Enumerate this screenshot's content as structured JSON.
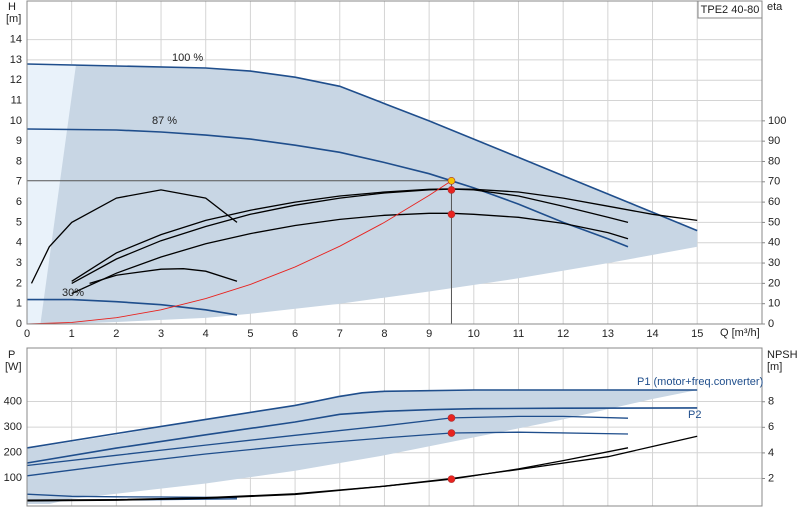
{
  "chart_data": [
    {
      "type": "line",
      "title": "TPE2 40-80",
      "y_label": [
        "H",
        "[m]"
      ],
      "y2_label": "eta",
      "x_label": "Q [m³/h]",
      "xlim": [
        0,
        16.45
      ],
      "ylim": [
        0,
        15.9
      ],
      "y2lim": [
        0,
        159
      ],
      "xticks": [
        0,
        1,
        2,
        3,
        4,
        5,
        6,
        7,
        8,
        9,
        10,
        11,
        12,
        13,
        14,
        15
      ],
      "yticks": [
        0,
        1,
        2,
        3,
        4,
        5,
        6,
        7,
        8,
        9,
        10,
        11,
        12,
        13,
        14
      ],
      "y2ticks": [
        0,
        10,
        20,
        30,
        40,
        50,
        60,
        70,
        80,
        90,
        100
      ],
      "grid": true,
      "series": [
        {
          "color": "#c8d6e4",
          "area": true,
          "x": [
            0,
            2,
            4,
            5,
            6,
            7,
            8,
            9,
            10,
            11,
            12,
            13,
            14,
            15,
            15,
            13,
            11,
            9,
            7,
            5,
            4,
            2,
            0.8,
            0.3
          ],
          "values": [
            12.8,
            12.7,
            12.6,
            12.45,
            12.15,
            11.7,
            10.85,
            10.0,
            9.1,
            8.2,
            7.3,
            6.4,
            5.5,
            4.6,
            3.8,
            3.0,
            2.25,
            1.6,
            1.0,
            0.5,
            0.3,
            0.1,
            0,
            0
          ]
        },
        {
          "color": "#e9f2fa",
          "area": true,
          "x": [
            0,
            1.1,
            0.3,
            0
          ],
          "values": [
            12.8,
            12.8,
            0,
            0
          ]
        },
        {
          "name": "100 %",
          "color": "#1f4e8c",
          "x": [
            0,
            2,
            4,
            5,
            6,
            7,
            8,
            9,
            10,
            11,
            12,
            13,
            14,
            15
          ],
          "values": [
            12.8,
            12.7,
            12.6,
            12.45,
            12.15,
            11.7,
            10.85,
            10.0,
            9.1,
            8.2,
            7.3,
            6.4,
            5.5,
            4.6
          ]
        },
        {
          "name": "87 %",
          "color": "#1f4e8c",
          "x": [
            0,
            2,
            3,
            4,
            5,
            6,
            7,
            8,
            9,
            9.5,
            10,
            11,
            12,
            13,
            13.45
          ],
          "values": [
            9.6,
            9.55,
            9.45,
            9.3,
            9.1,
            8.8,
            8.45,
            7.95,
            7.4,
            7.05,
            6.7,
            5.9,
            5.0,
            4.2,
            3.8
          ]
        },
        {
          "name": "30%",
          "color": "#1f4e8c",
          "x": [
            0,
            1,
            2,
            3,
            4,
            4.7
          ],
          "values": [
            1.2,
            1.2,
            1.1,
            0.95,
            0.7,
            0.45
          ]
        },
        {
          "color": "#000000",
          "axis": "y2",
          "x": [
            1,
            2,
            3,
            4,
            5,
            6,
            7,
            8,
            9,
            9.5,
            10,
            11,
            12,
            13,
            14,
            15
          ],
          "values": [
            21,
            35,
            44,
            51,
            56,
            60,
            63,
            65,
            66.3,
            66.5,
            66.3,
            65,
            62,
            58,
            54,
            51
          ]
        },
        {
          "color": "#000000",
          "axis": "y2",
          "x": [
            1,
            2,
            3,
            4,
            5,
            6,
            7,
            8,
            9,
            9.5,
            10,
            11,
            12,
            13,
            13.45
          ],
          "values": [
            20,
            32,
            41,
            48,
            54,
            58.5,
            62,
            64.5,
            66,
            66.4,
            66,
            63,
            58,
            52.5,
            50
          ]
        },
        {
          "color": "#000000",
          "axis": "y2",
          "x": [
            1,
            2,
            3,
            4,
            5,
            6,
            7,
            8,
            9,
            9.5,
            10,
            11,
            12,
            13,
            13.45
          ],
          "values": [
            15,
            25,
            33,
            39.5,
            44.5,
            48.5,
            51.5,
            53.5,
            54.5,
            54.5,
            54,
            52.5,
            49.5,
            45,
            42
          ]
        },
        {
          "color": "#000000",
          "axis": "y2",
          "x": [
            0.1,
            0.5,
            1,
            2,
            3,
            4,
            4.7
          ],
          "values": [
            20,
            38,
            50,
            62,
            66,
            62,
            50
          ]
        },
        {
          "color": "#000000",
          "axis": "y2",
          "x": [
            1.4,
            2,
            3,
            3.5,
            4,
            4.7
          ],
          "values": [
            20,
            24,
            27,
            27.2,
            26,
            21
          ]
        },
        {
          "color": "#e8231f",
          "x": [
            0,
            1,
            2,
            3,
            4,
            5,
            6,
            7,
            8,
            9,
            9.5
          ],
          "values": [
            0,
            0.08,
            0.31,
            0.7,
            1.25,
            1.95,
            2.81,
            3.83,
            5.0,
            6.33,
            7.05
          ]
        },
        {
          "color": "#f5c400",
          "marker": true,
          "crosshair": true,
          "x": [
            9.5
          ],
          "values": [
            7.05
          ]
        },
        {
          "color": "#e8231f",
          "marker": true,
          "axis": "y2",
          "x": [
            9.5,
            9.5
          ],
          "values": [
            66,
            54
          ]
        }
      ]
    },
    {
      "type": "line",
      "y_label": [
        "P",
        "[W]"
      ],
      "y2_label": [
        "NPSH",
        "[m]"
      ],
      "xlim": [
        0,
        16.45
      ],
      "ylim": [
        -8,
        609
      ],
      "y2lim": [
        -0.15,
        12.2
      ],
      "xticks": [
        0,
        1,
        2,
        3,
        4,
        5,
        6,
        7,
        8,
        9,
        10,
        11,
        12,
        13,
        14,
        15
      ],
      "yticks": [
        100,
        200,
        300,
        400
      ],
      "y2ticks": [
        2,
        4,
        6,
        8
      ],
      "grid": true,
      "series": [
        {
          "color": "#c8d6e4",
          "area": true,
          "x": [
            0,
            2,
            4,
            6,
            7,
            8,
            10,
            12,
            14,
            15,
            15,
            14,
            12,
            10,
            8,
            6,
            4,
            2,
            1,
            0.5,
            0
          ],
          "values": [
            215,
            270,
            330,
            385,
            425,
            440,
            445,
            445,
            445,
            445,
            445,
            410,
            330,
            260,
            190,
            130,
            80,
            40,
            20,
            0,
            0
          ]
        },
        {
          "name": "P1 (motor+freq.converter)",
          "color": "#1f4e8c",
          "x": [
            0,
            2,
            4,
            6,
            7,
            7.5,
            8,
            10,
            12,
            14,
            15
          ],
          "values": [
            219,
            275,
            330,
            385,
            420,
            434,
            440,
            445,
            445,
            445,
            445
          ]
        },
        {
          "name": "P2",
          "color": "#1f4e8c",
          "x": [
            0,
            2,
            4,
            6,
            7,
            8,
            9,
            10,
            12,
            15
          ],
          "values": [
            160,
            218,
            270,
            320,
            350,
            362,
            368,
            372,
            374,
            375
          ]
        },
        {
          "color": "#1f4e8c",
          "x": [
            0,
            2,
            4,
            6,
            8,
            9.5,
            11,
            12,
            13.45
          ],
          "values": [
            150,
            190,
            230,
            268,
            305,
            336,
            342,
            342,
            335
          ]
        },
        {
          "color": "#1f4e8c",
          "x": [
            0,
            2,
            4,
            6,
            8,
            9.5,
            11,
            13.45
          ],
          "values": [
            110,
            155,
            195,
            230,
            258,
            277,
            280,
            273
          ]
        },
        {
          "color": "#1f4e8c",
          "x": [
            0,
            1,
            2,
            3,
            4.7
          ],
          "values": [
            38,
            30,
            28,
            27,
            25
          ]
        },
        {
          "color": "#1f4e8c",
          "x": [
            0,
            1,
            2,
            3,
            4.7
          ],
          "values": [
            12,
            14,
            16,
            17,
            20
          ]
        },
        {
          "color": "#000000",
          "axis": "y2",
          "x": [
            0,
            2,
            4,
            6,
            8,
            9.5,
            11,
            13,
            14,
            15
          ],
          "values": [
            0.3,
            0.35,
            0.5,
            0.8,
            1.4,
            2.0,
            2.7,
            3.7,
            4.5,
            5.3
          ]
        },
        {
          "color": "#000000",
          "axis": "y2",
          "x": [
            0,
            2,
            4,
            6,
            8,
            9.5,
            11,
            12,
            13.45
          ],
          "values": [
            0.25,
            0.3,
            0.45,
            0.75,
            1.4,
            1.95,
            2.75,
            3.4,
            4.4
          ]
        },
        {
          "color": "#e8231f",
          "marker": true,
          "x": [
            9.5,
            9.5
          ],
          "values": [
            336,
            277
          ]
        },
        {
          "color": "#e8231f",
          "marker": true,
          "axis": "y2",
          "x": [
            9.5
          ],
          "values": [
            1.95
          ]
        }
      ]
    }
  ]
}
